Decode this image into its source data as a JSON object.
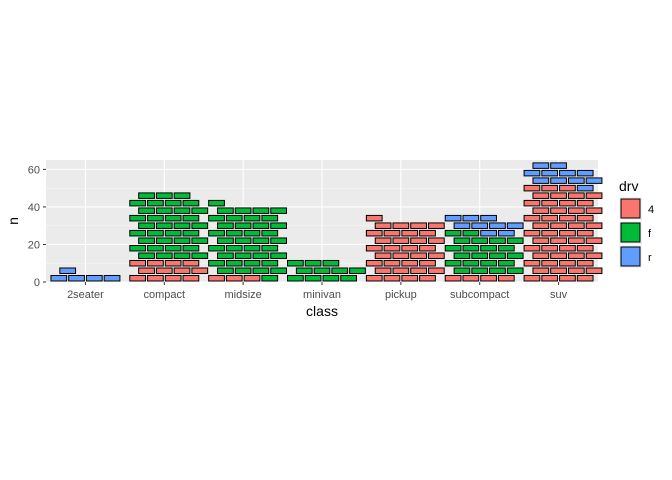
{
  "chart_data": {
    "type": "bar",
    "variant": "stacked-brick (one brick per observation)",
    "xlabel": "class",
    "ylabel": "n",
    "categories": [
      "2seater",
      "compact",
      "midsize",
      "minivan",
      "pickup",
      "subcompact",
      "suv"
    ],
    "series": [
      {
        "name": "4",
        "color": "#F8766D",
        "values": [
          0,
          12,
          3,
          0,
          33,
          4,
          51
        ]
      },
      {
        "name": "f",
        "color": "#00BA38",
        "values": [
          0,
          35,
          38,
          11,
          0,
          22,
          0
        ]
      },
      {
        "name": "r",
        "color": "#619CFF",
        "values": [
          5,
          0,
          0,
          0,
          0,
          9,
          11
        ]
      }
    ],
    "ylim": [
      0,
      65
    ],
    "yticks": [
      0,
      20,
      40,
      60
    ],
    "bricks_per_row": 4,
    "grid": true,
    "legend": {
      "title": "drv",
      "position": "right"
    }
  }
}
